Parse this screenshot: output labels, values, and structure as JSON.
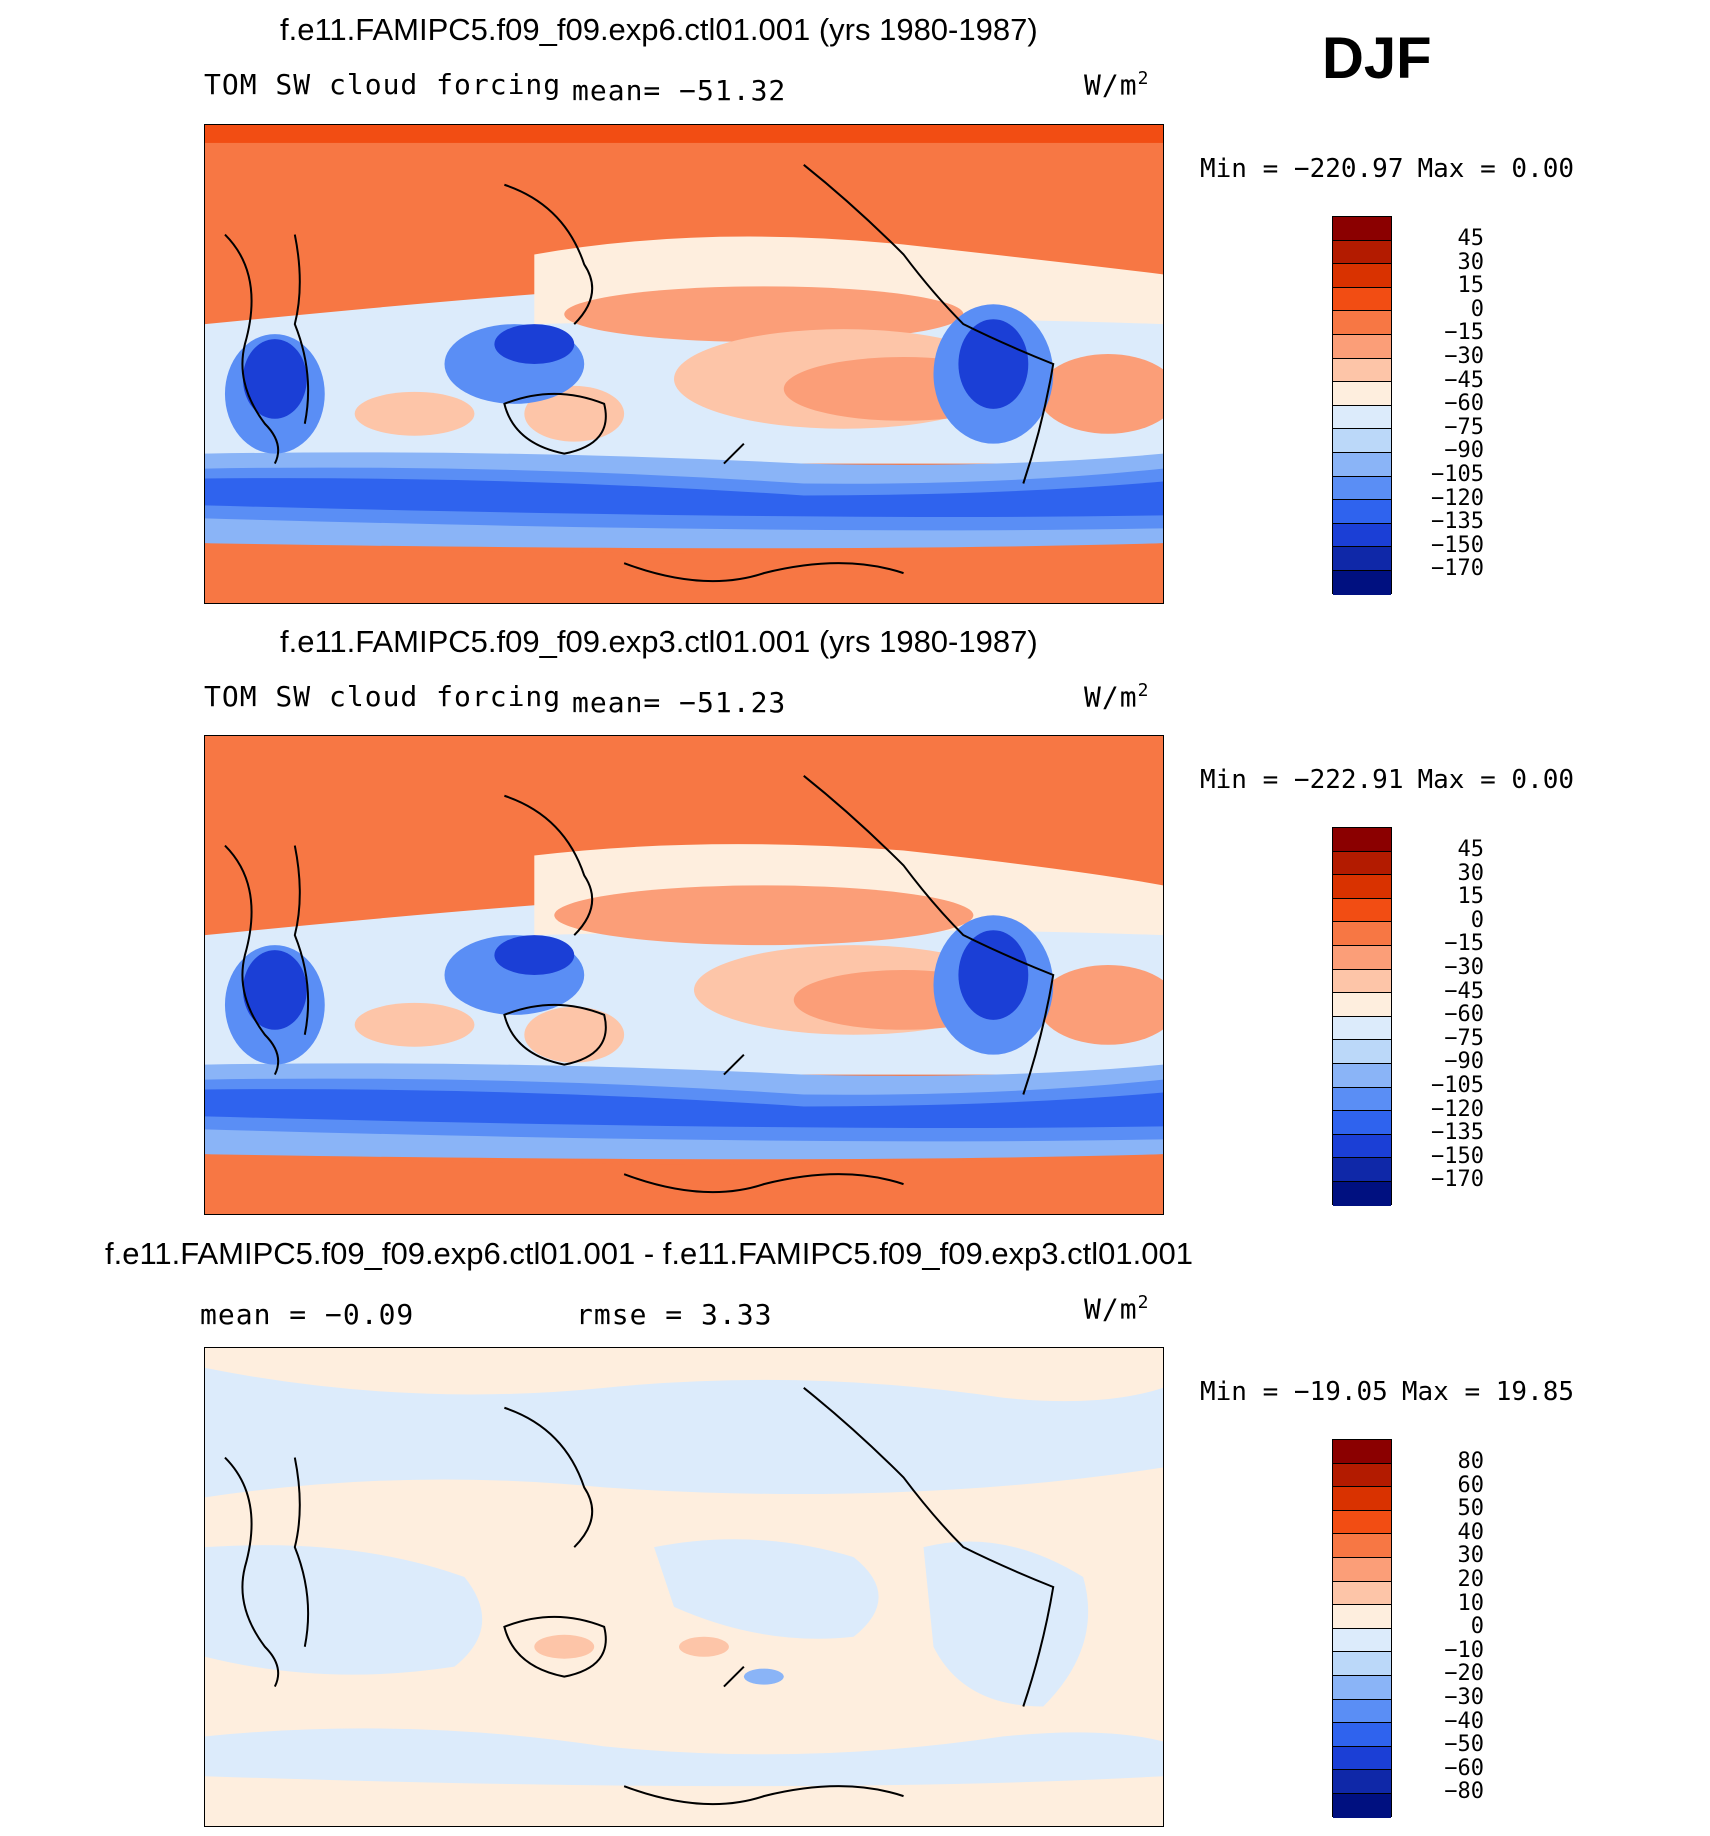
{
  "season": "DJF",
  "units_label": "W/m",
  "units_sup": "2",
  "colorbar_main": {
    "labels": [
      "45",
      "30",
      "15",
      "0",
      "−15",
      "−30",
      "−45",
      "−60",
      "−75",
      "−90",
      "−105",
      "−120",
      "−135",
      "−150",
      "−170"
    ],
    "colors": [
      "#8b0000",
      "#b31b00",
      "#d93200",
      "#f24d13",
      "#f77744",
      "#fb9e78",
      "#fdc5a8",
      "#feeede",
      "#dcebfb",
      "#bbd8f9",
      "#8ab4f7",
      "#5a8ef5",
      "#2f63ee",
      "#1b3fd6",
      "#0f28a8",
      "#001080"
    ]
  },
  "colorbar_diff": {
    "labels": [
      "80",
      "60",
      "50",
      "40",
      "30",
      "20",
      "10",
      "0",
      "−10",
      "−20",
      "−30",
      "−40",
      "−50",
      "−60",
      "−80"
    ],
    "colors": [
      "#8b0000",
      "#b31b00",
      "#d93200",
      "#f24d13",
      "#f77744",
      "#fb9e78",
      "#fdc5a8",
      "#feeede",
      "#dcebfb",
      "#bbd8f9",
      "#8ab4f7",
      "#5a8ef5",
      "#2f63ee",
      "#1b3fd6",
      "#0f28a8",
      "#001080"
    ]
  },
  "panels": [
    {
      "title": "f.e11.FAMIPC5.f09_f09.exp6.ctl01.001 (yrs 1980-1987)",
      "left_label": "TOM SW cloud forcing",
      "mean_label": "mean= −51.32",
      "min_label": "Min = −220.97",
      "max_label": "Max =    0.00"
    },
    {
      "title": "f.e11.FAMIPC5.f09_f09.exp3.ctl01.001 (yrs 1980-1987)",
      "left_label": "TOM SW cloud forcing",
      "mean_label": "mean= −51.23",
      "min_label": "Min = −222.91",
      "max_label": "Max =    0.00"
    },
    {
      "title": "f.e11.FAMIPC5.f09_f09.exp6.ctl01.001 - f.e11.FAMIPC5.f09_f09.exp3.ctl01.001",
      "left_label": "mean =  −0.09",
      "mean_label": "rmse =    3.33",
      "min_label": "Min = −19.05",
      "max_label": "Max =  19.85"
    }
  ],
  "chart_data": [
    {
      "type": "heatmap",
      "title": "f.e11.FAMIPC5.f09_f09.exp6.ctl01.001 (yrs 1980-1987)",
      "variable": "TOM SW cloud forcing",
      "units": "W/m2",
      "mean": -51.32,
      "min": -220.97,
      "max": 0.0,
      "contour_levels": [
        45,
        30,
        15,
        0,
        -15,
        -30,
        -45,
        -60,
        -75,
        -90,
        -105,
        -120,
        -135,
        -150,
        -170
      ]
    },
    {
      "type": "heatmap",
      "title": "f.e11.FAMIPC5.f09_f09.exp3.ctl01.001 (yrs 1980-1987)",
      "variable": "TOM SW cloud forcing",
      "units": "W/m2",
      "mean": -51.23,
      "min": -222.91,
      "max": 0.0,
      "contour_levels": [
        45,
        30,
        15,
        0,
        -15,
        -30,
        -45,
        -60,
        -75,
        -90,
        -105,
        -120,
        -135,
        -150,
        -170
      ]
    },
    {
      "type": "heatmap",
      "title": "f.e11.FAMIPC5.f09_f09.exp6.ctl01.001 - f.e11.FAMIPC5.f09_f09.exp3.ctl01.001",
      "units": "W/m2",
      "mean": -0.09,
      "rmse": 3.33,
      "min": -19.05,
      "max": 19.85,
      "contour_levels": [
        80,
        60,
        50,
        40,
        30,
        20,
        10,
        0,
        -10,
        -20,
        -30,
        -40,
        -50,
        -60,
        -80
      ]
    }
  ]
}
